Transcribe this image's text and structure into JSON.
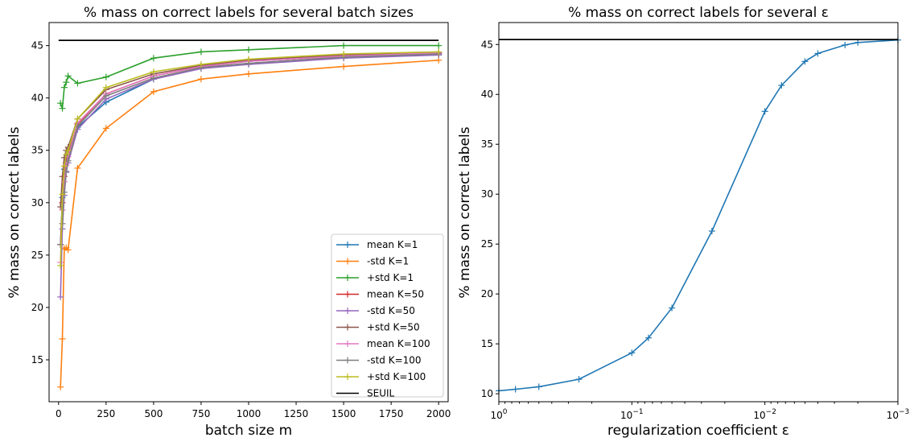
{
  "chart_data": [
    {
      "type": "line",
      "title": "% mass on correct labels for several batch sizes",
      "xlabel": "batch size m",
      "ylabel": "% mass on correct labels",
      "xlim": [
        -50,
        2050
      ],
      "ylim": [
        11.0,
        47.2
      ],
      "xticks": [
        0,
        250,
        500,
        750,
        1000,
        1250,
        1500,
        1750,
        2000
      ],
      "yticks": [
        15,
        20,
        25,
        30,
        35,
        40,
        45
      ],
      "legend_position": "lower right",
      "series": [
        {
          "name": "mean K=1",
          "color": "#1f77b4",
          "x": [
            10,
            20,
            30,
            40,
            50,
            100,
            250,
            500,
            750,
            1000,
            1500,
            2000
          ],
          "y": [
            26.0,
            30.5,
            33.2,
            34.3,
            34.9,
            37.2,
            39.6,
            41.8,
            42.9,
            43.3,
            43.9,
            44.2
          ]
        },
        {
          "name": "-std K=1",
          "color": "#ff7f0e",
          "x": [
            10,
            20,
            30,
            40,
            50,
            100,
            250,
            500,
            750,
            1000,
            1500,
            2000
          ],
          "y": [
            12.4,
            17.0,
            25.6,
            25.7,
            25.5,
            33.3,
            37.1,
            40.6,
            41.8,
            42.3,
            43.0,
            43.6
          ]
        },
        {
          "name": "+std K=1",
          "color": "#2ca02c",
          "x": [
            10,
            20,
            30,
            40,
            50,
            100,
            250,
            500,
            750,
            1000,
            1500,
            2000
          ],
          "y": [
            39.5,
            39.0,
            41.0,
            41.5,
            42.1,
            41.4,
            42.0,
            43.8,
            44.4,
            44.6,
            45.0,
            45.0
          ]
        },
        {
          "name": "mean K=50",
          "color": "#d62728",
          "x": [
            10,
            20,
            30,
            40,
            50,
            100,
            250,
            500,
            750,
            1000,
            1500,
            2000
          ],
          "y": [
            26.0,
            30.0,
            32.5,
            33.8,
            34.6,
            37.5,
            40.4,
            42.1,
            43.0,
            43.5,
            44.0,
            44.3
          ]
        },
        {
          "name": "-std K=50",
          "color": "#9467bd",
          "x": [
            10,
            20,
            30,
            40,
            50,
            100,
            250,
            500,
            750,
            1000,
            1500,
            2000
          ],
          "y": [
            21.0,
            27.5,
            30.7,
            32.9,
            33.8,
            37.0,
            39.9,
            41.8,
            42.8,
            43.2,
            43.8,
            44.1
          ]
        },
        {
          "name": "+std K=50",
          "color": "#8c564b",
          "x": [
            10,
            20,
            30,
            40,
            50,
            100,
            250,
            500,
            750,
            1000,
            1500,
            2000
          ],
          "y": [
            29.6,
            32.5,
            34.3,
            35.0,
            35.3,
            38.0,
            40.8,
            42.3,
            43.1,
            43.6,
            44.1,
            44.3
          ]
        },
        {
          "name": "mean K=100",
          "color": "#e377c2",
          "x": [
            10,
            20,
            30,
            40,
            50,
            100,
            250,
            500,
            750,
            1000,
            1500,
            2000
          ],
          "y": [
            24.3,
            29.3,
            32.0,
            33.6,
            34.4,
            37.6,
            40.4,
            42.1,
            43.0,
            43.5,
            44.0,
            44.3
          ]
        },
        {
          "name": "-std K=100",
          "color": "#7f7f7f",
          "x": [
            10,
            20,
            30,
            40,
            50,
            100,
            250,
            500,
            750,
            1000,
            1500,
            2000
          ],
          "y": [
            26.0,
            28.0,
            31.0,
            33.0,
            34.0,
            37.3,
            40.2,
            41.9,
            42.9,
            43.3,
            43.9,
            44.2
          ]
        },
        {
          "name": "+std K=100",
          "color": "#bcbd22",
          "x": [
            10,
            20,
            30,
            40,
            50,
            100,
            250,
            500,
            750,
            1000,
            1500,
            2000
          ],
          "y": [
            24.0,
            30.8,
            33.5,
            34.6,
            35.0,
            38.0,
            41.0,
            42.5,
            43.2,
            43.7,
            44.2,
            44.4
          ]
        },
        {
          "name": "SEUIL",
          "color": "#000000",
          "x": [
            0,
            2000
          ],
          "y": [
            45.5,
            45.5
          ]
        }
      ]
    },
    {
      "type": "line",
      "title": "% mass on correct labels for several ε",
      "xlabel": "regularization coefficient ε",
      "ylabel": "% mass on correct labels",
      "xscale": "log",
      "x_axis_reversed": true,
      "xlim": [
        1,
        0.001
      ],
      "ylim": [
        9.2,
        47.2
      ],
      "xticks": [
        {
          "value": 1,
          "base": "10",
          "exp": "0"
        },
        {
          "value": 0.1,
          "base": "10",
          "exp": "−1"
        },
        {
          "value": 0.01,
          "base": "10",
          "exp": "−2"
        },
        {
          "value": 0.001,
          "base": "10",
          "exp": "−3"
        }
      ],
      "yticks": [
        10,
        15,
        20,
        25,
        30,
        35,
        40,
        45
      ],
      "series": [
        {
          "color": "#1f77b4",
          "x": [
            1,
            0.75,
            0.5,
            0.25,
            0.1,
            0.075,
            0.05,
            0.025,
            0.01,
            0.0075,
            0.005,
            0.004,
            0.0025,
            0.002,
            0.001
          ],
          "y": [
            10.3,
            10.45,
            10.7,
            11.45,
            14.1,
            15.6,
            18.6,
            26.3,
            38.3,
            40.9,
            43.3,
            44.1,
            44.95,
            45.2,
            45.45
          ]
        },
        {
          "color": "#000000",
          "x": [
            1,
            0.001
          ],
          "y": [
            45.5,
            45.5
          ]
        }
      ]
    }
  ]
}
